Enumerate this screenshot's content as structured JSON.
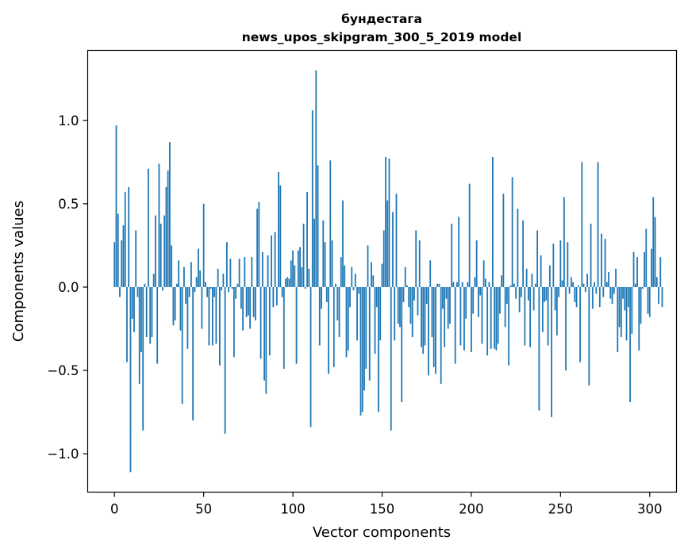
{
  "chart_data": {
    "type": "bar",
    "title_lines": [
      "бундестага",
      "news_upos_skipgram_300_5_2019 model"
    ],
    "xlabel": "Vector components",
    "ylabel": "Components values",
    "xlim": [
      -15,
      315
    ],
    "ylim": [
      -1.23,
      1.42
    ],
    "xticks": [
      0,
      50,
      100,
      150,
      200,
      250,
      300
    ],
    "xtick_labels": [
      "0",
      "50",
      "100",
      "150",
      "200",
      "250",
      "300"
    ],
    "yticks": [
      -1.0,
      -0.5,
      0.0,
      0.5,
      1.0
    ],
    "ytick_labels": [
      "−1.0",
      "−0.5",
      "0.0",
      "0.5",
      "1.0"
    ],
    "bar_color": "#1f77b4",
    "grid": false,
    "values": [
      0.27,
      0.97,
      0.44,
      -0.06,
      0.28,
      0.37,
      0.57,
      -0.45,
      0.6,
      -1.11,
      -0.19,
      -0.27,
      0.34,
      -0.06,
      -0.58,
      -0.39,
      -0.86,
      0.02,
      -0.3,
      0.71,
      -0.34,
      -0.3,
      0.08,
      0.43,
      -0.46,
      0.74,
      0.38,
      -0.02,
      0.43,
      0.6,
      0.7,
      0.87,
      0.25,
      -0.23,
      -0.2,
      0.02,
      0.16,
      -0.26,
      -0.7,
      0.12,
      -0.1,
      -0.37,
      -0.06,
      0.15,
      -0.8,
      -0.03,
      0.06,
      0.23,
      0.1,
      -0.25,
      0.5,
      0.03,
      -0.06,
      -0.35,
      -0.01,
      -0.35,
      -0.06,
      -0.34,
      0.11,
      -0.47,
      -0.02,
      0.08,
      -0.88,
      0.27,
      -0.03,
      0.17,
      -0.01,
      -0.42,
      -0.07,
      0.02,
      0.17,
      -0.13,
      -0.26,
      0.18,
      -0.18,
      -0.17,
      -0.25,
      0.18,
      -0.18,
      -0.2,
      0.47,
      0.51,
      -0.43,
      0.21,
      -0.56,
      -0.64,
      0.19,
      -0.41,
      0.31,
      -0.12,
      0.33,
      -0.11,
      0.69,
      0.61,
      -0.06,
      -0.49,
      0.05,
      0.06,
      0.05,
      0.16,
      0.22,
      0.13,
      -0.46,
      0.22,
      0.24,
      0.12,
      0.38,
      -0.01,
      0.57,
      0.11,
      -0.84,
      1.06,
      0.41,
      1.3,
      0.73,
      -0.35,
      -0.13,
      0.4,
      0.27,
      -0.09,
      -0.52,
      0.76,
      0.28,
      -0.48,
      0.02,
      -0.2,
      -0.3,
      0.18,
      0.52,
      0.13,
      -0.42,
      -0.38,
      -0.12,
      0.12,
      -0.02,
      0.08,
      -0.32,
      -0.04,
      -0.77,
      -0.75,
      -0.62,
      -0.49,
      0.25,
      -0.56,
      0.15,
      0.07,
      -0.4,
      -0.12,
      -0.75,
      -0.32,
      0.14,
      0.34,
      0.78,
      0.52,
      0.77,
      -0.86,
      0.45,
      -0.32,
      0.56,
      -0.22,
      -0.24,
      -0.69,
      -0.09,
      0.12,
      0.01,
      -0.12,
      -0.22,
      -0.3,
      -0.08,
      0.34,
      -0.17,
      0.28,
      -0.36,
      -0.4,
      -0.35,
      -0.1,
      -0.53,
      0.16,
      -0.3,
      -0.48,
      -0.52,
      0.02,
      0.02,
      -0.58,
      -0.13,
      -0.36,
      -0.07,
      -0.25,
      -0.22,
      0.38,
      0.03,
      -0.46,
      0.03,
      0.42,
      -0.35,
      0.03,
      -0.38,
      -0.19,
      0.03,
      0.62,
      -0.39,
      -0.16,
      0.06,
      0.28,
      -0.18,
      -0.05,
      -0.34,
      0.16,
      0.05,
      -0.41,
      0.03,
      -0.37,
      0.78,
      -0.37,
      -0.38,
      -0.34,
      -0.16,
      0.07,
      0.56,
      -0.24,
      -0.1,
      -0.47,
      0.01,
      0.66,
      0.02,
      -0.07,
      0.47,
      -0.15,
      -0.06,
      0.4,
      -0.35,
      0.11,
      -0.08,
      -0.36,
      0.08,
      -0.14,
      0.02,
      0.34,
      -0.74,
      0.19,
      -0.27,
      -0.09,
      -0.08,
      -0.35,
      0.13,
      -0.78,
      0.26,
      -0.14,
      -0.29,
      -0.06,
      0.28,
      0.04,
      0.54,
      -0.5,
      0.27,
      -0.04,
      0.06,
      0.03,
      -0.09,
      -0.12,
      0.01,
      -0.45,
      0.75,
      0.02,
      -0.03,
      0.08,
      -0.59,
      0.38,
      -0.13,
      0.03,
      -0.04,
      0.75,
      -0.12,
      0.32,
      -0.06,
      0.29,
      0.03,
      0.09,
      -0.07,
      -0.1,
      -0.04,
      0.11,
      -0.39,
      -0.24,
      -0.3,
      -0.07,
      -0.14,
      -0.32,
      -0.12,
      -0.69,
      -0.28,
      0.21,
      0.02,
      0.18,
      -0.38,
      -0.22,
      -0.01,
      0.21,
      0.35,
      -0.16,
      -0.18,
      0.23,
      0.54,
      0.42,
      0.06,
      -0.1,
      0.18,
      -0.12
    ]
  }
}
